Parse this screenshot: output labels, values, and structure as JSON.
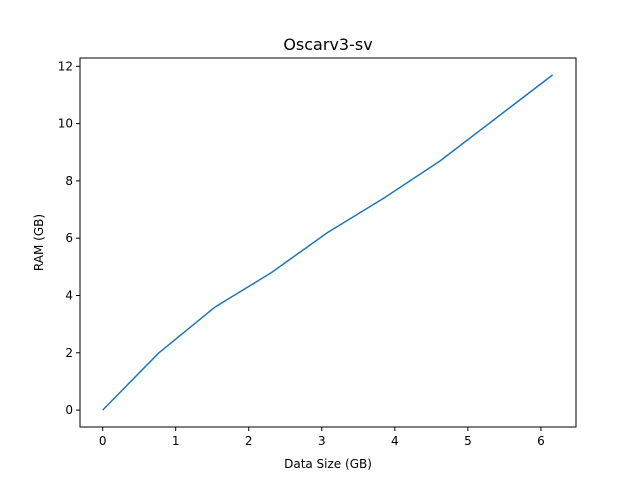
{
  "chart_data": {
    "type": "line",
    "title": "Oscarv3-sv",
    "xlabel": "Data Size (GB)",
    "ylabel": "RAM (GB)",
    "xlim": [
      -0.31,
      6.48
    ],
    "ylim": [
      -0.59,
      12.29
    ],
    "xticks": [
      0,
      1,
      2,
      3,
      4,
      5,
      6
    ],
    "yticks": [
      0,
      2,
      4,
      6,
      8,
      10,
      12
    ],
    "grid": false,
    "series": [
      {
        "color": "#1f77b4",
        "x": [
          0,
          0.77,
          1.54,
          2.31,
          3.08,
          3.85,
          4.62,
          5.39,
          6.16
        ],
        "y": [
          0,
          2.0,
          3.6,
          4.8,
          6.2,
          7.4,
          8.7,
          10.2,
          11.7
        ]
      }
    ]
  }
}
